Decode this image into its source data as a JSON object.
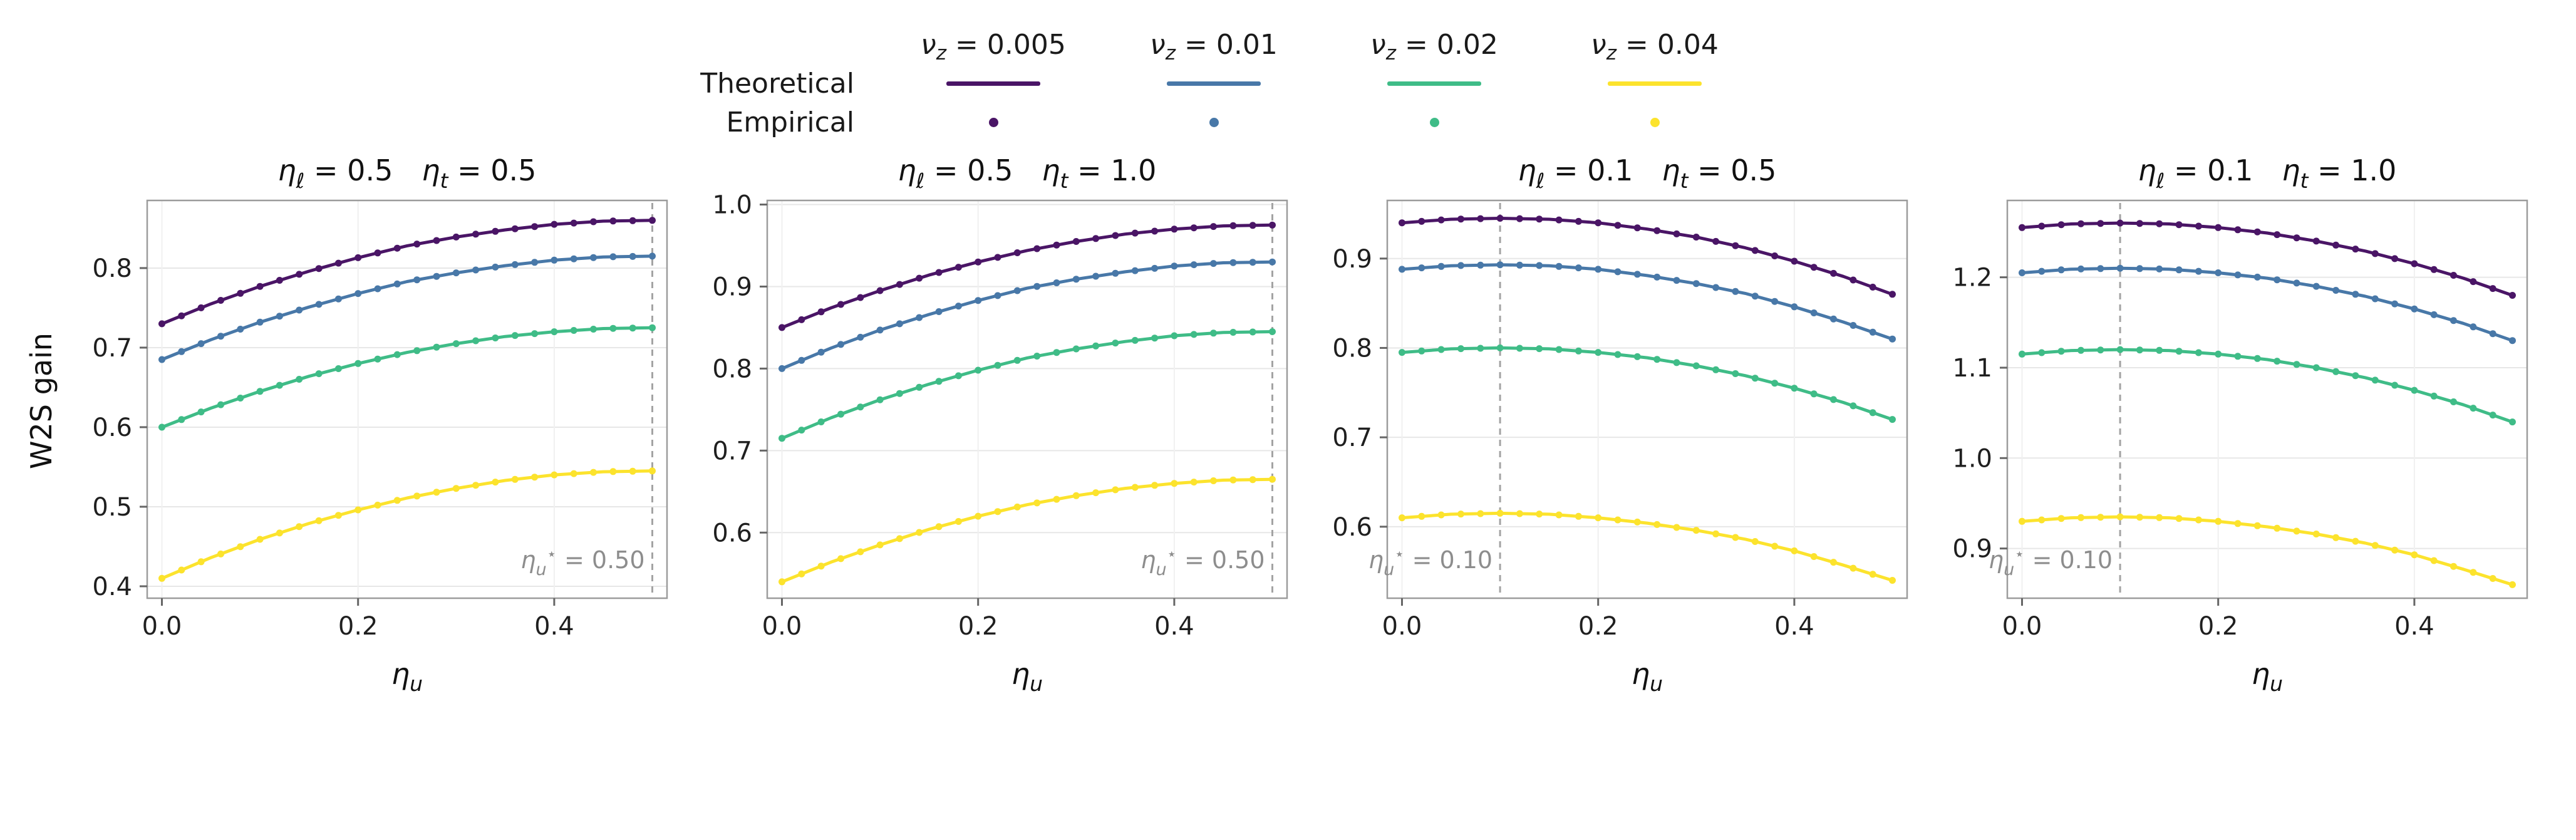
{
  "figure": {
    "ylabel": "W2S gain",
    "xlabel_base": "η",
    "xlabel_sub": "u"
  },
  "legend": {
    "row_labels": [
      "Theoretical",
      "Empirical"
    ],
    "items": [
      {
        "base": "ν",
        "sub": "z",
        "rest": " = 0.005",
        "color": "#4a1566"
      },
      {
        "base": "ν",
        "sub": "z",
        "rest": " = 0.01",
        "color": "#4878a8"
      },
      {
        "base": "ν",
        "sub": "z",
        "rest": " = 0.02",
        "color": "#3fbc87"
      },
      {
        "base": "ν",
        "sub": "z",
        "rest": " = 0.04",
        "color": "#fce32d"
      }
    ]
  },
  "chart_data": [
    {
      "type": "line",
      "title_parts": [
        {
          "base": "η",
          "sub": "ℓ",
          "rest": " = 0.5"
        },
        {
          "base": "η",
          "sub": "t",
          "rest": " = 0.5"
        }
      ],
      "xlabel": "ηu",
      "ylabel": "W2S gain",
      "x": [
        0.0,
        0.05,
        0.1,
        0.15,
        0.2,
        0.25,
        0.3,
        0.35,
        0.4,
        0.45,
        0.5
      ],
      "series": [
        {
          "name": "νz = 0.005",
          "color": "#4a1566",
          "values": [
            0.73,
            0.755,
            0.777,
            0.796,
            0.813,
            0.828,
            0.839,
            0.848,
            0.855,
            0.859,
            0.86
          ]
        },
        {
          "name": "νz = 0.01",
          "color": "#4878a8",
          "values": [
            0.685,
            0.71,
            0.732,
            0.751,
            0.768,
            0.783,
            0.794,
            0.803,
            0.81,
            0.814,
            0.815
          ]
        },
        {
          "name": "νz = 0.02",
          "color": "#3fbc87",
          "values": [
            0.6,
            0.624,
            0.645,
            0.664,
            0.68,
            0.694,
            0.705,
            0.714,
            0.72,
            0.724,
            0.725
          ]
        },
        {
          "name": "νz = 0.04",
          "color": "#fce32d",
          "values": [
            0.41,
            0.436,
            0.459,
            0.479,
            0.496,
            0.511,
            0.523,
            0.533,
            0.54,
            0.544,
            0.545
          ]
        }
      ],
      "xlim": [
        -0.015,
        0.515
      ],
      "ylim": [
        0.385,
        0.885
      ],
      "xticks": [
        0.0,
        0.2,
        0.4
      ],
      "yticks": [
        0.4,
        0.5,
        0.6,
        0.7,
        0.8
      ],
      "grid": true,
      "vline": {
        "x": 0.5,
        "label": {
          "base": "η",
          "sub": "u",
          "sup": "⋆",
          "rest": " = 0.50"
        }
      }
    },
    {
      "type": "line",
      "title_parts": [
        {
          "base": "η",
          "sub": "ℓ",
          "rest": " = 0.5"
        },
        {
          "base": "η",
          "sub": "t",
          "rest": " = 1.0"
        }
      ],
      "xlabel": "ηu",
      "x": [
        0.0,
        0.05,
        0.1,
        0.15,
        0.2,
        0.25,
        0.3,
        0.35,
        0.4,
        0.45,
        0.5
      ],
      "series": [
        {
          "name": "νz = 0.005",
          "color": "#4a1566",
          "values": [
            0.85,
            0.874,
            0.895,
            0.914,
            0.93,
            0.944,
            0.955,
            0.964,
            0.97,
            0.974,
            0.975
          ]
        },
        {
          "name": "νz = 0.01",
          "color": "#4878a8",
          "values": [
            0.8,
            0.825,
            0.847,
            0.866,
            0.883,
            0.898,
            0.909,
            0.918,
            0.925,
            0.929,
            0.93
          ]
        },
        {
          "name": "νz = 0.02",
          "color": "#3fbc87",
          "values": [
            0.715,
            0.74,
            0.762,
            0.781,
            0.798,
            0.813,
            0.824,
            0.833,
            0.84,
            0.844,
            0.845
          ]
        },
        {
          "name": "νz = 0.04",
          "color": "#fce32d",
          "values": [
            0.54,
            0.564,
            0.585,
            0.604,
            0.62,
            0.634,
            0.645,
            0.654,
            0.66,
            0.664,
            0.665
          ]
        }
      ],
      "xlim": [
        -0.015,
        0.515
      ],
      "ylim": [
        0.52,
        1.005
      ],
      "xticks": [
        0.0,
        0.2,
        0.4
      ],
      "yticks": [
        0.6,
        0.7,
        0.8,
        0.9,
        1.0
      ],
      "grid": true,
      "vline": {
        "x": 0.5,
        "label": {
          "base": "η",
          "sub": "u",
          "sup": "⋆",
          "rest": " = 0.50"
        }
      }
    },
    {
      "type": "line",
      "title_parts": [
        {
          "base": "η",
          "sub": "ℓ",
          "rest": " = 0.1"
        },
        {
          "base": "η",
          "sub": "t",
          "rest": " = 0.5"
        }
      ],
      "xlabel": "ηu",
      "x": [
        0.0,
        0.05,
        0.1,
        0.15,
        0.2,
        0.25,
        0.3,
        0.35,
        0.4,
        0.45,
        0.5
      ],
      "series": [
        {
          "name": "νz = 0.005",
          "color": "#4a1566",
          "values": [
            0.94,
            0.944,
            0.945,
            0.944,
            0.94,
            0.933,
            0.924,
            0.912,
            0.897,
            0.88,
            0.86
          ]
        },
        {
          "name": "νz = 0.01",
          "color": "#4878a8",
          "values": [
            0.888,
            0.892,
            0.893,
            0.892,
            0.888,
            0.881,
            0.872,
            0.861,
            0.846,
            0.829,
            0.81
          ]
        },
        {
          "name": "νz = 0.02",
          "color": "#3fbc87",
          "values": [
            0.795,
            0.799,
            0.8,
            0.799,
            0.795,
            0.789,
            0.78,
            0.769,
            0.755,
            0.739,
            0.72
          ]
        },
        {
          "name": "νz = 0.04",
          "color": "#fce32d",
          "values": [
            0.61,
            0.614,
            0.615,
            0.614,
            0.61,
            0.604,
            0.596,
            0.586,
            0.573,
            0.557,
            0.54
          ]
        }
      ],
      "xlim": [
        -0.015,
        0.515
      ],
      "ylim": [
        0.52,
        0.965
      ],
      "xticks": [
        0.0,
        0.2,
        0.4
      ],
      "yticks": [
        0.6,
        0.7,
        0.8,
        0.9
      ],
      "grid": true,
      "vline": {
        "x": 0.1,
        "label": {
          "base": "η",
          "sub": "u",
          "sup": "⋆",
          "rest": " = 0.10"
        }
      }
    },
    {
      "type": "line",
      "title_parts": [
        {
          "base": "η",
          "sub": "ℓ",
          "rest": " = 0.1"
        },
        {
          "base": "η",
          "sub": "t",
          "rest": " = 1.0"
        }
      ],
      "xlabel": "ηu",
      "x": [
        0.0,
        0.05,
        0.1,
        0.15,
        0.2,
        0.25,
        0.3,
        0.35,
        0.4,
        0.45,
        0.5
      ],
      "series": [
        {
          "name": "νz = 0.005",
          "color": "#4a1566",
          "values": [
            1.255,
            1.259,
            1.26,
            1.259,
            1.255,
            1.249,
            1.24,
            1.229,
            1.215,
            1.199,
            1.18
          ]
        },
        {
          "name": "νz = 0.01",
          "color": "#4878a8",
          "values": [
            1.205,
            1.209,
            1.21,
            1.209,
            1.205,
            1.199,
            1.19,
            1.179,
            1.165,
            1.149,
            1.13
          ]
        },
        {
          "name": "νz = 0.02",
          "color": "#3fbc87",
          "values": [
            1.115,
            1.119,
            1.12,
            1.119,
            1.115,
            1.109,
            1.1,
            1.089,
            1.075,
            1.059,
            1.04
          ]
        },
        {
          "name": "νz = 0.04",
          "color": "#fce32d",
          "values": [
            0.93,
            0.934,
            0.935,
            0.934,
            0.93,
            0.924,
            0.916,
            0.906,
            0.893,
            0.877,
            0.86
          ]
        }
      ],
      "xlim": [
        -0.015,
        0.515
      ],
      "ylim": [
        0.845,
        1.285
      ],
      "xticks": [
        0.0,
        0.2,
        0.4
      ],
      "yticks": [
        0.9,
        1.0,
        1.1,
        1.2
      ],
      "grid": true,
      "vline": {
        "x": 0.1,
        "label": {
          "base": "η",
          "sub": "u",
          "sup": "⋆",
          "rest": " = 0.10"
        }
      }
    }
  ]
}
